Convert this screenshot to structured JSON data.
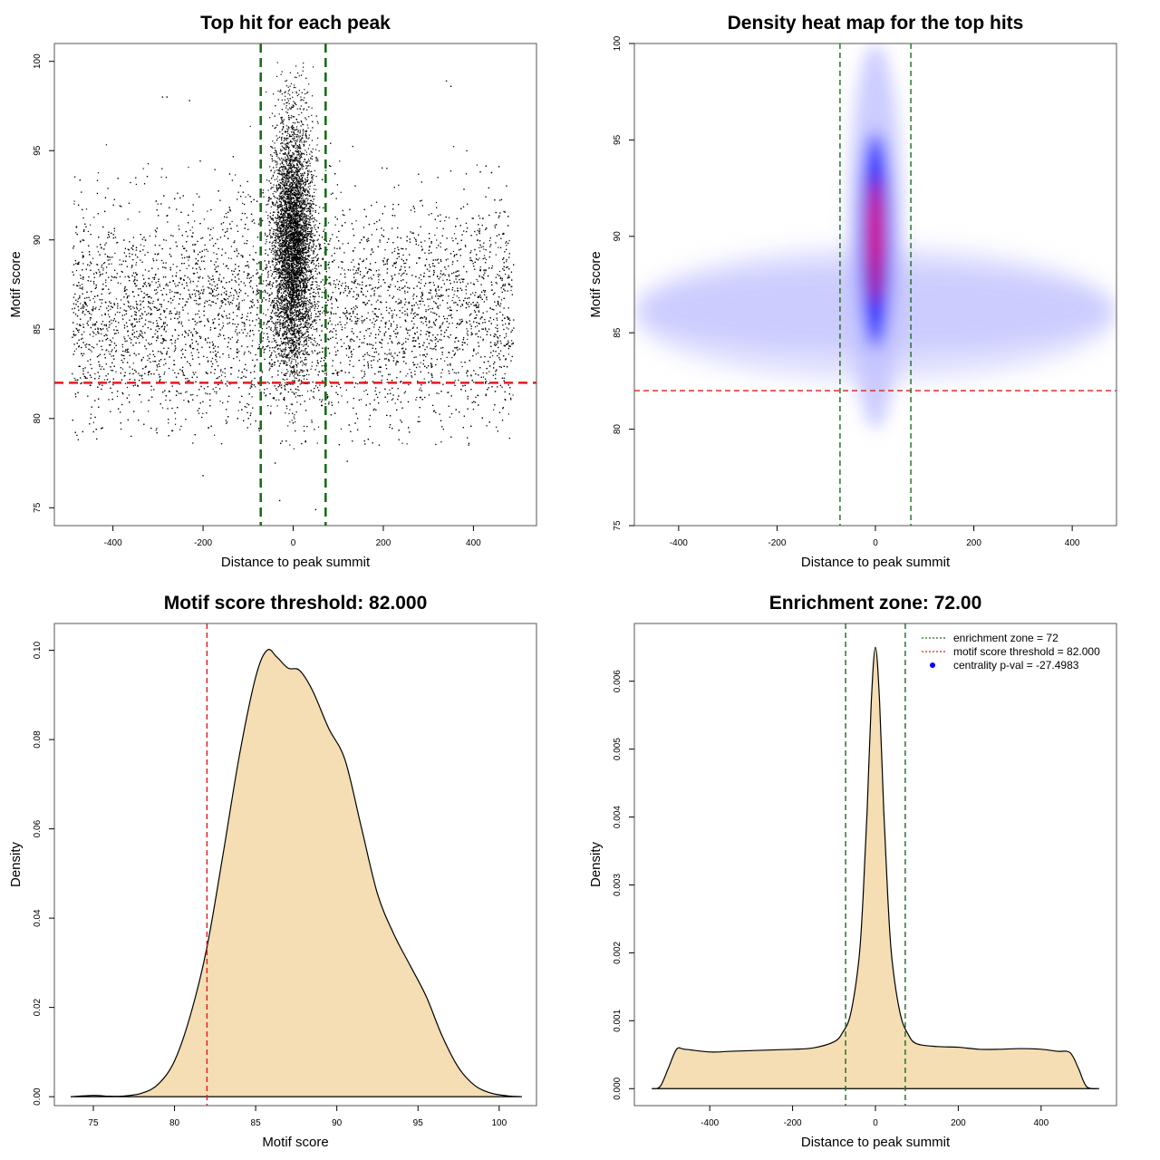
{
  "colors": {
    "threshold": "#e31a1c",
    "zone": "#1a6e1a",
    "fill": "#f5deb3",
    "heat_low": "#ffffff",
    "heat_mid": "#0000ff",
    "heat_high": "#ff0000",
    "point": "#000000"
  },
  "chart_data": [
    {
      "type": "scatter",
      "title": "Top hit for each peak",
      "xlabel": "Distance to peak summit",
      "ylabel": "Motif score",
      "xlim": [
        -530,
        540
      ],
      "ylim": [
        74,
        101
      ],
      "x_ticks": [
        -400,
        -200,
        0,
        200,
        400
      ],
      "y_ticks": [
        75,
        80,
        85,
        90,
        95,
        100
      ],
      "threshold_y": 82,
      "zone_x": [
        -72,
        72
      ],
      "background": {
        "x_range": [
          -490,
          490
        ],
        "y_mean": 86,
        "y_sd": 3.1,
        "count": 9000
      },
      "central": {
        "x_mean": 0,
        "x_sd": 22,
        "y_mean": 89.8,
        "y_sd": 3.4,
        "count": 6000
      },
      "outliers": [
        {
          "x": -290,
          "y": 98
        },
        {
          "x": -280,
          "y": 98
        },
        {
          "x": -230,
          "y": 97.8
        },
        {
          "x": 340,
          "y": 98.9
        },
        {
          "x": 350,
          "y": 98.6
        },
        {
          "x": -200,
          "y": 76.8
        },
        {
          "x": -40,
          "y": 77.5
        },
        {
          "x": -30,
          "y": 75.4
        },
        {
          "x": 120,
          "y": 77.6
        },
        {
          "x": 50,
          "y": 74.9
        },
        {
          "x": 390,
          "y": 78.6
        }
      ]
    },
    {
      "type": "heatmap",
      "title": "Density heat map for the top hits",
      "xlabel": "Distance to peak summit",
      "ylabel": "Motif score",
      "xlim": [
        -490,
        490
      ],
      "ylim": [
        75,
        100
      ],
      "x_ticks": [
        -400,
        -200,
        0,
        200,
        400
      ],
      "y_ticks": [
        75,
        80,
        85,
        90,
        95,
        100
      ],
      "threshold_y": 82,
      "zone_x": [
        -72,
        72
      ]
    },
    {
      "type": "area",
      "title": "Motif score threshold: 82.000",
      "xlabel": "Motif score",
      "ylabel": "Density",
      "xlim": [
        72.6,
        102.3
      ],
      "ylim": [
        -0.002,
        0.106
      ],
      "x_ticks": [
        75,
        80,
        85,
        90,
        95,
        100
      ],
      "y_ticks": [
        0.0,
        0.02,
        0.04,
        0.06,
        0.08,
        0.1
      ],
      "y_tick_labels": [
        "0.00",
        "0.02",
        "0.04",
        "0.06",
        "0.08",
        "0.10"
      ],
      "threshold_x": 82,
      "x": [
        73.6,
        75,
        76,
        77,
        78,
        79,
        80,
        81,
        82,
        83,
        84,
        85,
        85.7,
        86.3,
        87,
        87.7,
        88.5,
        89.5,
        90.5,
        91.5,
        92.5,
        93.5,
        94.5,
        95.5,
        96.5,
        97.5,
        98.5,
        99.5,
        100.5,
        101.4
      ],
      "y": [
        0.0,
        0.0003,
        0.0001,
        0.0002,
        0.0008,
        0.0028,
        0.008,
        0.0185,
        0.0335,
        0.0545,
        0.0765,
        0.094,
        0.1,
        0.0985,
        0.096,
        0.0955,
        0.091,
        0.0825,
        0.0755,
        0.0605,
        0.0455,
        0.0365,
        0.0295,
        0.0225,
        0.0135,
        0.0065,
        0.0025,
        0.0008,
        0.0002,
        0.0
      ]
    },
    {
      "type": "area",
      "title": "Enrichment zone: 72.00",
      "xlabel": "Distance to peak summit",
      "ylabel": "Density",
      "xlim": [
        -582,
        582
      ],
      "ylim": [
        -0.00025,
        0.00685
      ],
      "x_ticks": [
        -400,
        -200,
        0,
        200,
        400
      ],
      "y_ticks": [
        0.0,
        0.001,
        0.002,
        0.003,
        0.004,
        0.005,
        0.006
      ],
      "y_tick_labels": [
        "0.000",
        "0.001",
        "0.002",
        "0.003",
        "0.004",
        "0.005",
        "0.006"
      ],
      "zone_x": [
        -72,
        72
      ],
      "x": [
        -540,
        -520,
        -500,
        -480,
        -460,
        -400,
        -350,
        -300,
        -250,
        -200,
        -150,
        -100,
        -80,
        -60,
        -40,
        -30,
        -20,
        -10,
        0,
        10,
        20,
        30,
        40,
        60,
        80,
        100,
        150,
        200,
        250,
        300,
        350,
        400,
        440,
        470,
        490,
        510,
        540
      ],
      "y": [
        0.0,
        3e-05,
        0.0003,
        0.00058,
        0.00058,
        0.00054,
        0.00055,
        0.00056,
        0.00057,
        0.00058,
        0.0006,
        0.00069,
        0.00082,
        0.0011,
        0.0019,
        0.0028,
        0.0041,
        0.0057,
        0.0065,
        0.0057,
        0.0041,
        0.0028,
        0.0019,
        0.0011,
        0.00079,
        0.00066,
        0.00062,
        0.00061,
        0.00058,
        0.00058,
        0.00059,
        0.00058,
        0.00055,
        0.00053,
        0.0003,
        3e-05,
        0.0
      ],
      "legend": {
        "position": "top-right",
        "entries": [
          {
            "label": "enrichment zone = 72",
            "style": "dotted",
            "color": "#1a6e1a"
          },
          {
            "label": "motif score threshold = 82.000",
            "style": "dotted",
            "color": "#e31a1c"
          },
          {
            "label": "centrality p-val = -27.4983",
            "style": "dot",
            "color": "#0000ff"
          }
        ]
      }
    }
  ]
}
